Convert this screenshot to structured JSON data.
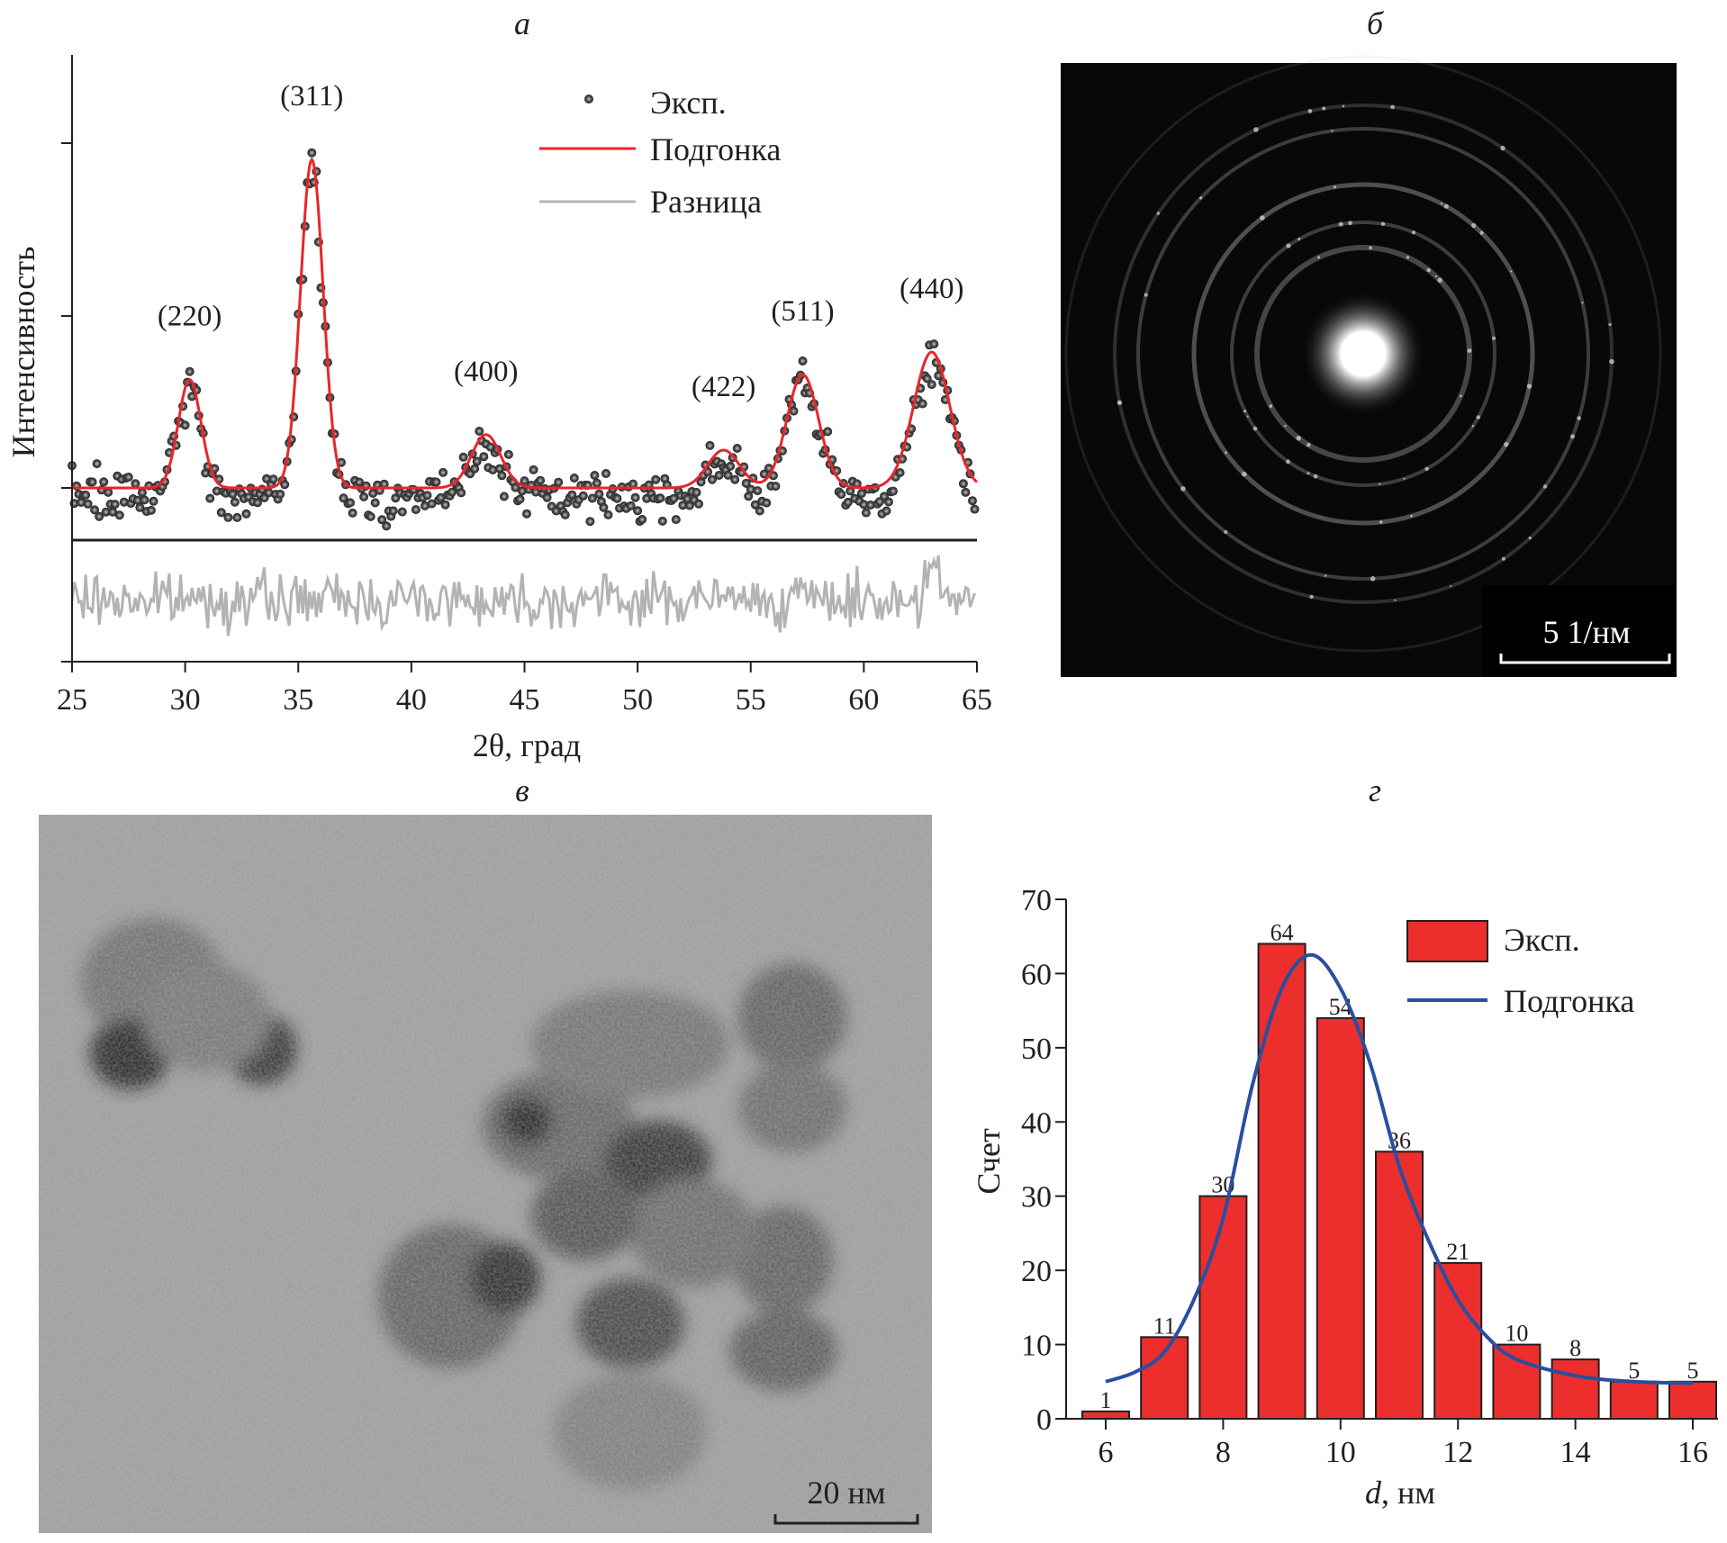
{
  "panels": {
    "a": {
      "letter": "а"
    },
    "b": {
      "letter": "б",
      "scale_bar": "5 1/нм"
    },
    "c": {
      "letter": "в",
      "scale_bar": "20 нм"
    },
    "d": {
      "letter": "г"
    }
  },
  "chart_data": [
    {
      "type": "scatter",
      "panel": "а",
      "xlabel": "2θ, град",
      "ylabel": "Интенсивность",
      "xlim": [
        25,
        65
      ],
      "xticks": [
        "25",
        "30",
        "35",
        "40",
        "45",
        "50",
        "55",
        "60",
        "65"
      ],
      "y_tick_labels_shown": false,
      "legend": {
        "placement": "top-right",
        "entries": [
          "Эксп.",
          "Подгонка",
          "Разница"
        ]
      },
      "colors": {
        "exp": "#4a4a4a",
        "fit": "#e8262b",
        "diff": "#b3b3b3"
      },
      "peaks": [
        {
          "label": "(220)",
          "two_theta": 30.2,
          "height": 0.63,
          "sigma": 0.5
        },
        {
          "label": "(311)",
          "two_theta": 35.6,
          "height": 1.91,
          "sigma": 0.5
        },
        {
          "label": "(400)",
          "two_theta": 43.3,
          "height": 0.31,
          "sigma": 0.65
        },
        {
          "label": "(422)",
          "two_theta": 53.8,
          "height": 0.22,
          "sigma": 0.7
        },
        {
          "label": "(511)",
          "two_theta": 57.3,
          "height": 0.66,
          "sigma": 0.7
        },
        {
          "label": "(440)",
          "two_theta": 63.0,
          "height": 0.79,
          "sigma": 0.8
        }
      ]
    },
    {
      "type": "bar",
      "panel": "г",
      "xlabel_italic": "d",
      "xlabel_rest": ", нм",
      "ylabel": "Счет",
      "xlim": [
        5.5,
        16.5
      ],
      "ylim": [
        0,
        70
      ],
      "xticks": [
        "6",
        "8",
        "10",
        "12",
        "14",
        "16"
      ],
      "yticks": [
        "0",
        "10",
        "20",
        "30",
        "40",
        "50",
        "60",
        "70"
      ],
      "legend": {
        "placement": "top-right",
        "entries": [
          "Эксп.",
          "Подгонка"
        ]
      },
      "colors": {
        "bar": "#ec2f2d",
        "fit": "#2a4ea0"
      },
      "categories": [
        6,
        7,
        8,
        9,
        10,
        11,
        12,
        13,
        14,
        15,
        16
      ],
      "values": [
        1,
        11,
        30,
        64,
        54,
        36,
        21,
        10,
        8,
        5,
        5
      ],
      "data_labels": [
        "1",
        "11",
        "30",
        "64",
        "54",
        "36",
        "21",
        "10",
        "8",
        "5",
        "5"
      ],
      "fit": {
        "x": [
          6,
          6.5,
          7,
          7.5,
          8,
          8.5,
          9,
          9.5,
          10,
          10.5,
          11,
          11.5,
          12,
          12.5,
          13,
          14,
          15,
          16
        ],
        "y": [
          5,
          6.3,
          9,
          16,
          27,
          45,
          58,
          62.5,
          58,
          48,
          34,
          24,
          16,
          11,
          8,
          5.8,
          5,
          4.8
        ]
      }
    }
  ]
}
